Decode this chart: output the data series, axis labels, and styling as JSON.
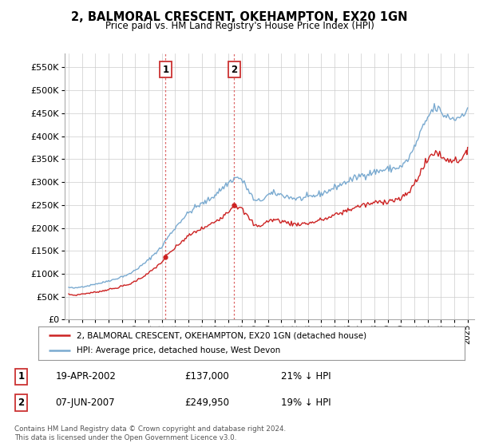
{
  "title": "2, BALMORAL CRESCENT, OKEHAMPTON, EX20 1GN",
  "subtitle": "Price paid vs. HM Land Registry's House Price Index (HPI)",
  "ytick_vals": [
    0,
    50000,
    100000,
    150000,
    200000,
    250000,
    300000,
    350000,
    400000,
    450000,
    500000,
    550000
  ],
  "ylim": [
    0,
    580000
  ],
  "xlim_start": 1994.7,
  "xlim_end": 2025.5,
  "hpi_color": "#7aaad0",
  "price_color": "#cc2222",
  "vline_color": "#dd6666",
  "sale1_date": 2002.29,
  "sale1_price": 137000,
  "sale2_date": 2007.44,
  "sale2_price": 249950,
  "legend_house": "2, BALMORAL CRESCENT, OKEHAMPTON, EX20 1GN (detached house)",
  "legend_hpi": "HPI: Average price, detached house, West Devon",
  "label1_num": "1",
  "label1_date": "19-APR-2002",
  "label1_price": "£137,000",
  "label1_hpi": "21% ↓ HPI",
  "label2_num": "2",
  "label2_date": "07-JUN-2007",
  "label2_price": "£249,950",
  "label2_hpi": "19% ↓ HPI",
  "footer": "Contains HM Land Registry data © Crown copyright and database right 2024.\nThis data is licensed under the Open Government Licence v3.0.",
  "background_color": "#ffffff",
  "grid_color": "#cccccc",
  "box_color": "#cc3333"
}
